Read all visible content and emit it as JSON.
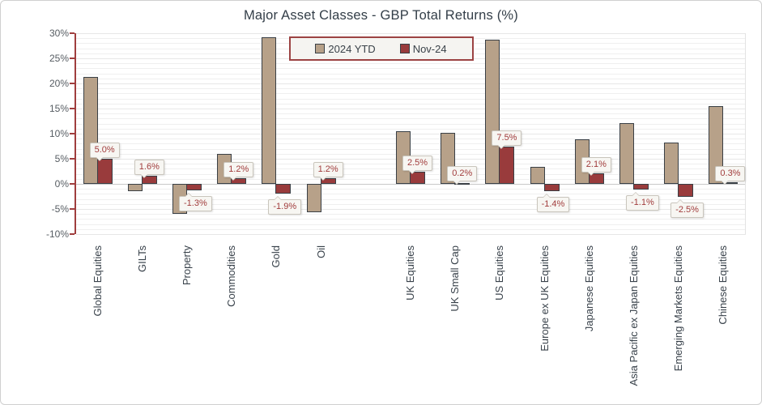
{
  "window": {
    "background": "#ffffff",
    "border_color": "#cfcfcf"
  },
  "chart_data": {
    "type": "bar",
    "title": "Major Asset Classes - GBP Total Returns (%)",
    "categories": [
      "Global Equities",
      "GILTs",
      "Property",
      "Commodities",
      "Gold",
      "Oil",
      "UK Equities",
      "UK Small Cap",
      "US Equities",
      "Europe ex UK Equities",
      "Japanese Equities",
      "Asia Pacific ex Japan Equities",
      "Emerging Markets Equities",
      "Chinese Equities"
    ],
    "series": [
      {
        "name": "2024 YTD",
        "color": "#b7a189",
        "values": [
          21.3,
          -1.4,
          -6.0,
          5.9,
          29.2,
          -5.7,
          10.5,
          10.1,
          28.7,
          3.4,
          8.9,
          12.1,
          8.2,
          15.5
        ]
      },
      {
        "name": "Nov-24",
        "color": "#993b3c",
        "values": [
          5.0,
          1.6,
          -1.3,
          1.2,
          -1.9,
          1.2,
          2.5,
          0.2,
          7.5,
          -1.4,
          2.1,
          -1.1,
          -2.5,
          0.3
        ],
        "data_labels": [
          "5.0%",
          "1.6%",
          "-1.3%",
          "1.2%",
          "-1.9%",
          "1.2%",
          "2.5%",
          "0.2%",
          "7.5%",
          "-1.4%",
          "2.1%",
          "-1.1%",
          "-2.5%",
          "0.3%"
        ]
      }
    ],
    "ylim": [
      -10,
      30
    ],
    "y_major_step": 5,
    "y_minor_step": 1,
    "y_tick_labels": [
      "30%",
      "25%",
      "20%",
      "15%",
      "10%",
      "5%",
      "0%",
      "-5%",
      "-10%"
    ],
    "grid": true,
    "group_gap_after_index": 5,
    "legend_position": "top-center",
    "axis_color": "#9f3e3e",
    "bar_border_color": "#3a4046",
    "data_label_color": "#a13c3c",
    "legend_border_color": "#9c4343"
  }
}
